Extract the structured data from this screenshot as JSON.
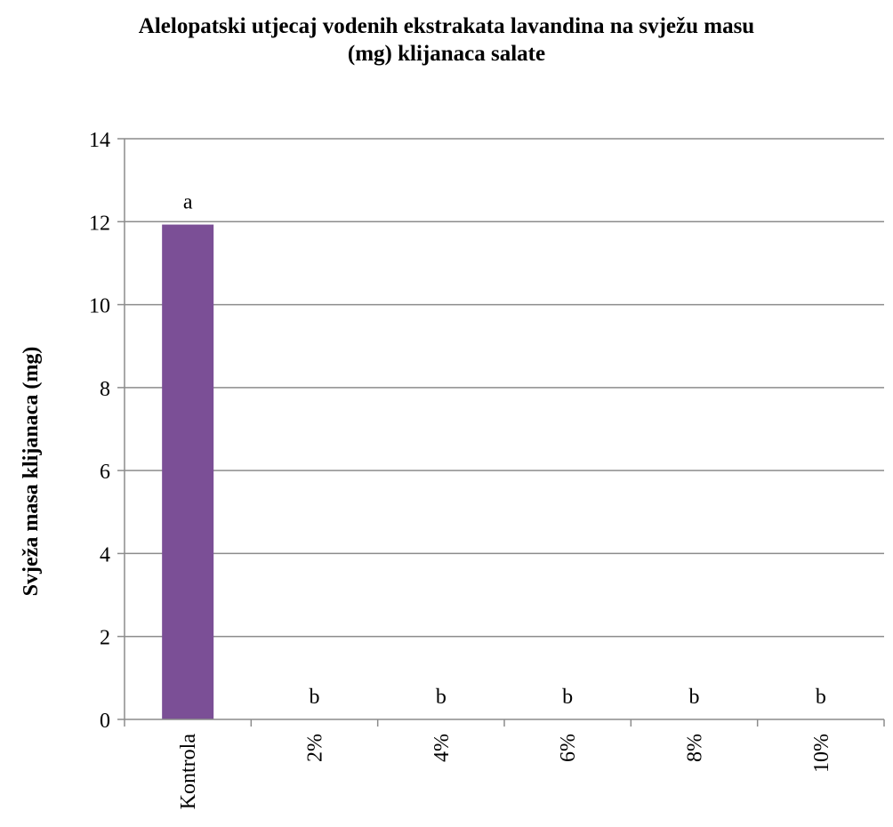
{
  "chart_data": {
    "type": "bar",
    "title": [
      "Alelopatski utjecaj vodenih ekstrakata lavandina na svježu masu",
      "(mg) klijanaca salate"
    ],
    "xlabel": "",
    "ylabel": "Svježa masa klijanaca (mg)",
    "categories": [
      "Kontrola",
      "2%",
      "4%",
      "6%",
      "8%",
      "10%"
    ],
    "values": [
      11.93,
      0,
      0,
      0,
      0,
      0
    ],
    "data_labels": [
      "a",
      "b",
      "b",
      "b",
      "b",
      "b"
    ],
    "ylim": [
      0,
      14
    ],
    "yticks": [
      0,
      2,
      4,
      6,
      8,
      10,
      12,
      14
    ],
    "grid": true,
    "legend": "none",
    "bar_color": "#7B4F96",
    "grid_color": "#8c8c8c"
  }
}
